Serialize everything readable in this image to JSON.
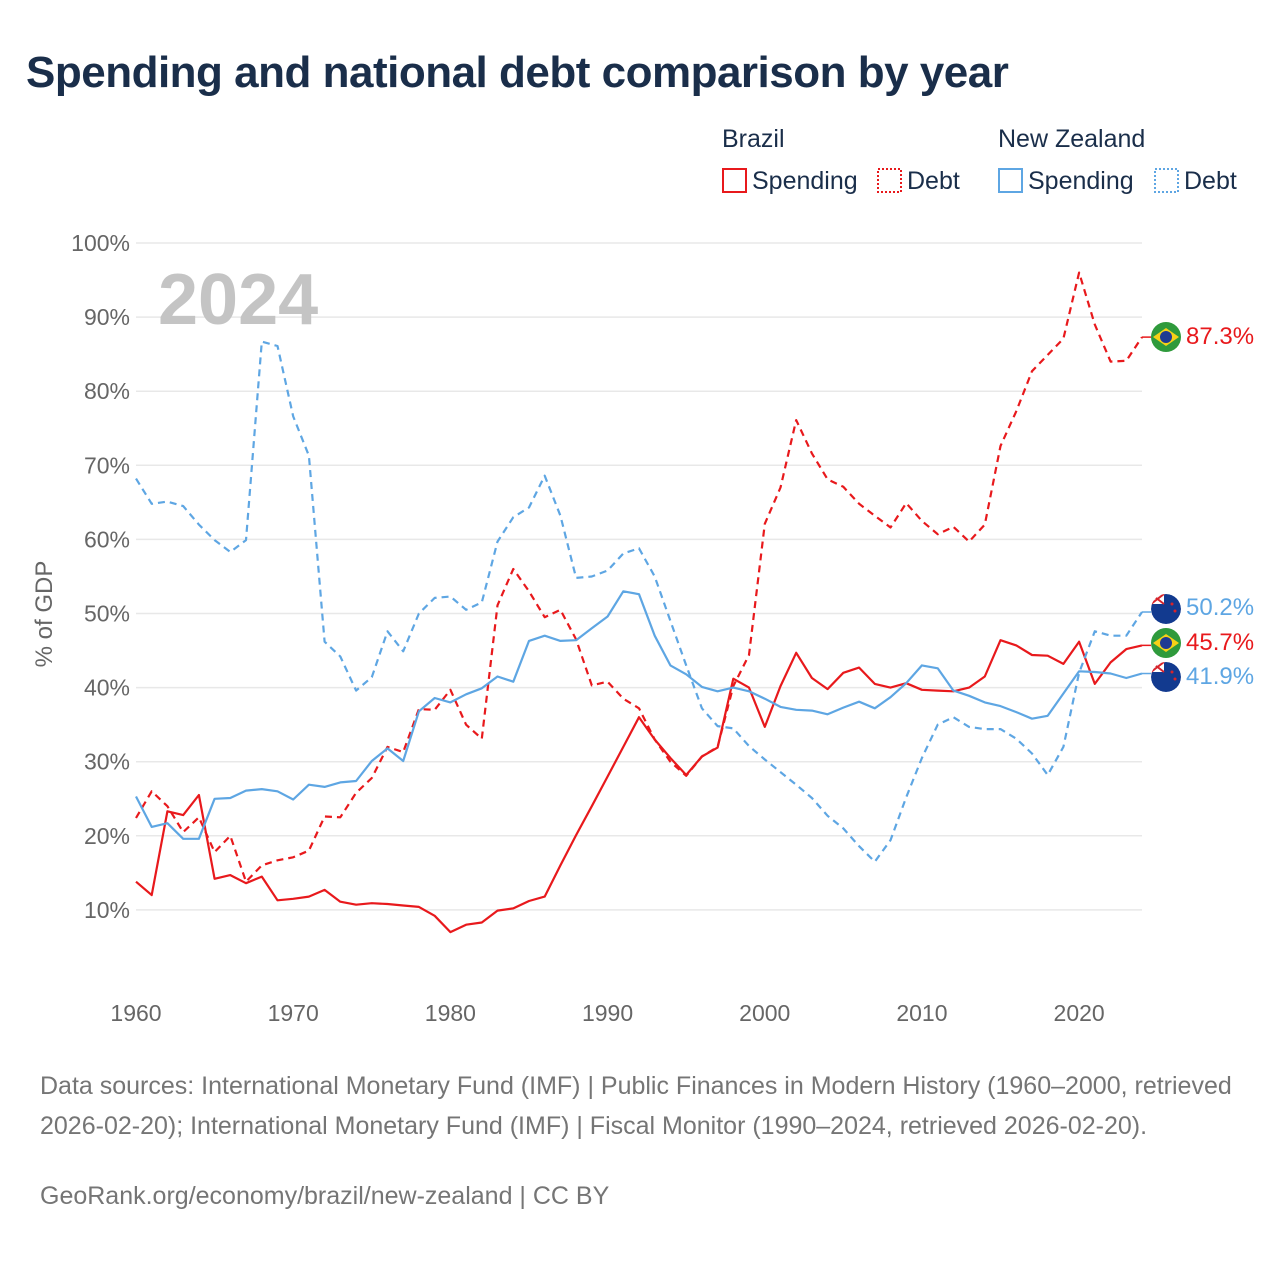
{
  "title": "Spending and national debt comparison by year",
  "colors": {
    "brazil": "#e8191c",
    "new_zealand": "#5ea6e3",
    "title": "#1a2e4a"
  },
  "legend": {
    "groups": [
      {
        "country": "Brazil",
        "key": "brazil",
        "spending_label": "Spending",
        "debt_label": "Debt"
      },
      {
        "country": "New Zealand",
        "key": "new_zealand",
        "spending_label": "Spending",
        "debt_label": "Debt"
      }
    ]
  },
  "chart_data": {
    "type": "line",
    "year_overlay": "2024",
    "ylabel": "% of GDP",
    "xlabel": "",
    "xlim": [
      1960,
      2024
    ],
    "ylim": [
      0,
      100
    ],
    "x_ticks": [
      1960,
      1970,
      1980,
      1990,
      2000,
      2010,
      2020
    ],
    "y_ticks": [
      {
        "value": 10,
        "label": "10%"
      },
      {
        "value": 20,
        "label": "20%"
      },
      {
        "value": 30,
        "label": "30%"
      },
      {
        "value": 40,
        "label": "40%"
      },
      {
        "value": 50,
        "label": "50%"
      },
      {
        "value": 60,
        "label": "60%"
      },
      {
        "value": 70,
        "label": "70%"
      },
      {
        "value": 80,
        "label": "80%"
      },
      {
        "value": 90,
        "label": "90%"
      },
      {
        "value": 100,
        "label": "100%"
      }
    ],
    "x_start": 1960,
    "series": [
      {
        "name": "Brazil Spending",
        "country": "brazil",
        "dash": false,
        "end_label": "45.7%",
        "values": [
          13.8,
          12.0,
          23.3,
          22.8,
          25.5,
          14.2,
          14.7,
          13.6,
          14.5,
          11.3,
          11.5,
          11.8,
          12.7,
          11.1,
          10.7,
          10.9,
          10.8,
          10.6,
          10.4,
          9.2,
          7.0,
          8.0,
          8.3,
          9.9,
          10.2,
          11.2,
          11.8,
          16.0,
          20.1,
          24.0,
          28.0,
          32.0,
          36.0,
          33.0,
          30.5,
          28.2,
          30.7,
          31.9,
          41.2,
          40.0,
          34.7,
          40.2,
          44.7,
          41.3,
          39.8,
          42.0,
          42.7,
          40.5,
          40.0,
          40.6,
          39.7,
          39.6,
          39.5,
          40.0,
          41.5,
          46.4,
          45.7,
          44.4,
          44.3,
          43.2,
          46.2,
          40.5,
          43.4,
          45.2,
          45.7
        ]
      },
      {
        "name": "Brazil Debt",
        "country": "brazil",
        "dash": true,
        "end_label": "87.3%",
        "values": [
          22.4,
          26.0,
          24.0,
          20.5,
          22.5,
          17.8,
          20.0,
          13.8,
          16.0,
          16.7,
          17.1,
          18.0,
          22.6,
          22.5,
          25.8,
          27.8,
          32.0,
          31.3,
          37.1,
          37.0,
          39.7,
          35.0,
          33.1,
          51.1,
          56.0,
          53.0,
          49.5,
          50.5,
          46.5,
          40.3,
          40.8,
          38.5,
          37.2,
          33.0,
          30.0,
          28.1,
          30.7,
          32.0,
          40.2,
          44.4,
          62.1,
          67.0,
          76.1,
          71.6,
          68.1,
          67.1,
          64.8,
          63.2,
          61.6,
          64.9,
          62.5,
          60.7,
          61.7,
          59.7,
          62.0,
          72.6,
          77.3,
          82.7,
          84.9,
          87.1,
          96.0,
          89.0,
          84.0,
          84.1,
          87.3
        ]
      },
      {
        "name": "New Zealand Spending",
        "country": "new_zealand",
        "dash": false,
        "end_label": "41.9%",
        "values": [
          25.3,
          21.2,
          21.7,
          19.6,
          19.6,
          25.0,
          25.1,
          26.1,
          26.3,
          26.0,
          24.9,
          26.9,
          26.6,
          27.2,
          27.4,
          30.1,
          31.8,
          30.1,
          36.8,
          38.6,
          38.0,
          39.1,
          39.9,
          41.5,
          40.8,
          46.3,
          47.0,
          46.3,
          46.4,
          48.0,
          49.6,
          53.0,
          52.6,
          47.0,
          43.0,
          41.8,
          40.1,
          39.5,
          40.0,
          39.5,
          38.5,
          37.4,
          37.0,
          36.9,
          36.4,
          37.3,
          38.1,
          37.2,
          38.7,
          40.6,
          43.0,
          42.6,
          39.6,
          38.9,
          38.0,
          37.5,
          36.7,
          35.8,
          36.2,
          39.2,
          42.2,
          42.1,
          41.9,
          41.3,
          41.9
        ]
      },
      {
        "name": "New Zealand Debt",
        "country": "new_zealand",
        "dash": true,
        "end_label": "50.2%",
        "values": [
          68.2,
          64.8,
          65.1,
          64.5,
          62.0,
          59.9,
          58.3,
          59.9,
          86.7,
          86.1,
          76.6,
          71.3,
          46.2,
          44.2,
          39.6,
          41.4,
          47.6,
          44.9,
          50.0,
          52.1,
          52.3,
          50.5,
          51.5,
          59.7,
          63.0,
          64.3,
          68.6,
          63.2,
          54.8,
          55.0,
          55.8,
          58.1,
          58.8,
          55.0,
          49.0,
          43.0,
          37.2,
          34.8,
          34.5,
          32.1,
          30.3,
          28.6,
          26.9,
          25.1,
          22.7,
          21.0,
          18.6,
          16.5,
          19.4,
          25.2,
          30.5,
          35.0,
          36.0,
          34.7,
          34.4,
          34.4,
          33.1,
          31.1,
          28.2,
          32.0,
          42.0,
          47.6,
          47.0,
          47.0,
          50.2
        ]
      }
    ]
  },
  "source_text": "Data sources: International Monetary Fund (IMF) | Public Finances in Modern History (1960–2000, retrieved 2026-02-20); International Monetary Fund (IMF) | Fiscal Monitor (1990–2024, retrieved 2026-02-20).",
  "attribution": "GeoRank.org/economy/brazil/new-zealand | CC BY"
}
